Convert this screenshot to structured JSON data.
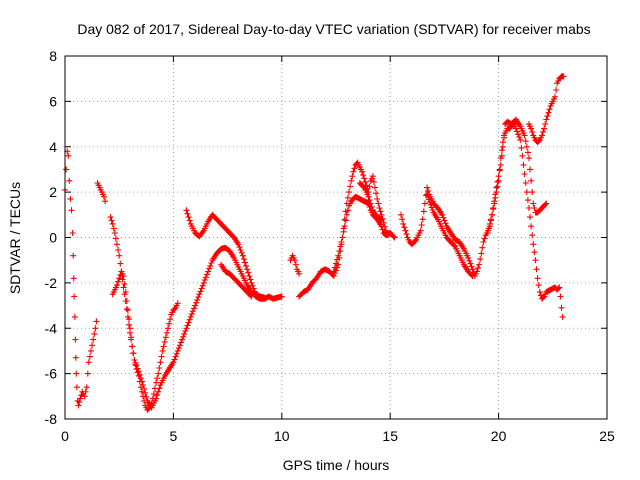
{
  "chart_data": {
    "type": "scatter",
    "title": "Day 082 of 2017, Sidereal Day-to-day VTEC variation (SDTVAR) for receiver mabs",
    "xlabel": "GPS time / hours",
    "ylabel": "SDTVAR / TECUs",
    "xlim": [
      0,
      25
    ],
    "ylim": [
      -8,
      8
    ],
    "xticks": [
      0,
      5,
      10,
      15,
      20,
      25
    ],
    "yticks": [
      -8,
      -6,
      -4,
      -2,
      0,
      2,
      4,
      6,
      8
    ],
    "xtick_labels": [
      "0",
      "5",
      "10",
      "15",
      "20",
      "25"
    ],
    "ytick_labels": [
      "-8",
      "-6",
      "-4",
      "-2",
      "0",
      "2",
      "4",
      "6",
      "8"
    ],
    "grid": true,
    "marker": "plus",
    "color": "#ff0000",
    "segments": [
      [
        [
          0.0,
          2.1
        ],
        [
          0.05,
          3.0
        ],
        [
          0.1,
          3.8
        ],
        [
          0.15,
          3.6
        ],
        [
          0.2,
          2.5
        ],
        [
          0.25,
          1.7
        ],
        [
          0.3,
          1.2
        ],
        [
          0.35,
          0.2
        ],
        [
          0.38,
          -0.8
        ],
        [
          0.4,
          -1.8
        ],
        [
          0.42,
          -2.6
        ],
        [
          0.45,
          -3.5
        ],
        [
          0.48,
          -4.5
        ],
        [
          0.5,
          -5.3
        ],
        [
          0.52,
          -6.0
        ],
        [
          0.55,
          -6.6
        ],
        [
          0.58,
          -7.2
        ],
        [
          0.62,
          -7.4
        ],
        [
          0.7,
          -7.1
        ],
        [
          0.8,
          -6.8
        ],
        [
          0.9,
          -7.0
        ],
        [
          1.0,
          -6.6
        ],
        [
          1.05,
          -6.0
        ],
        [
          1.1,
          -5.5
        ],
        [
          1.2,
          -5.0
        ],
        [
          1.3,
          -4.5
        ],
        [
          1.4,
          -4.0
        ],
        [
          1.45,
          -3.7
        ]
      ],
      [
        [
          1.5,
          2.4
        ],
        [
          1.6,
          2.2
        ],
        [
          1.7,
          2.0
        ],
        [
          1.8,
          1.8
        ],
        [
          1.85,
          1.6
        ]
      ],
      [
        [
          2.1,
          0.9
        ],
        [
          2.2,
          0.6
        ],
        [
          2.3,
          0.2
        ],
        [
          2.4,
          -0.3
        ],
        [
          2.5,
          -0.8
        ],
        [
          2.6,
          -1.5
        ],
        [
          2.7,
          -2.2
        ],
        [
          2.8,
          -2.8
        ],
        [
          2.9,
          -3.5
        ],
        [
          3.0,
          -4.2
        ],
        [
          3.1,
          -4.8
        ],
        [
          3.2,
          -5.4
        ],
        [
          3.3,
          -5.8
        ],
        [
          3.4,
          -6.1
        ],
        [
          3.5,
          -6.6
        ],
        [
          3.6,
          -7.0
        ],
        [
          3.7,
          -7.4
        ],
        [
          3.8,
          -7.6
        ],
        [
          3.9,
          -7.5
        ],
        [
          4.0,
          -7.3
        ],
        [
          4.1,
          -6.9
        ],
        [
          4.2,
          -6.4
        ],
        [
          4.3,
          -6.0
        ],
        [
          4.4,
          -5.5
        ],
        [
          4.5,
          -5.0
        ],
        [
          4.6,
          -4.6
        ],
        [
          4.7,
          -4.2
        ],
        [
          4.8,
          -3.8
        ],
        [
          4.9,
          -3.4
        ],
        [
          5.0,
          -3.2
        ],
        [
          5.1,
          -3.1
        ],
        [
          5.2,
          -2.9
        ]
      ],
      [
        [
          2.2,
          -2.5
        ],
        [
          2.3,
          -2.3
        ],
        [
          2.4,
          -2.1
        ],
        [
          2.5,
          -1.8
        ],
        [
          2.6,
          -1.5
        ],
        [
          2.7,
          -1.7
        ],
        [
          2.8,
          -2.4
        ],
        [
          2.9,
          -3.2
        ],
        [
          3.0,
          -4.0
        ],
        [
          3.1,
          -4.8
        ],
        [
          3.2,
          -5.4
        ],
        [
          3.4,
          -5.9
        ],
        [
          3.6,
          -6.5
        ],
        [
          3.8,
          -7.2
        ],
        [
          4.0,
          -7.5
        ],
        [
          4.2,
          -7.1
        ],
        [
          4.4,
          -6.5
        ],
        [
          4.6,
          -6.1
        ],
        [
          4.8,
          -5.8
        ],
        [
          5.0,
          -5.5
        ],
        [
          5.2,
          -5.0
        ],
        [
          5.4,
          -4.5
        ],
        [
          5.6,
          -4.0
        ],
        [
          5.8,
          -3.5
        ],
        [
          6.0,
          -3.0
        ],
        [
          6.2,
          -2.5
        ],
        [
          6.4,
          -2.0
        ],
        [
          6.6,
          -1.5
        ],
        [
          6.8,
          -1.0
        ],
        [
          7.0,
          -0.7
        ],
        [
          7.2,
          -0.5
        ],
        [
          7.4,
          -0.45
        ],
        [
          7.6,
          -0.6
        ],
        [
          7.8,
          -0.9
        ],
        [
          8.0,
          -1.3
        ],
        [
          8.2,
          -1.7
        ],
        [
          8.4,
          -2.1
        ],
        [
          8.6,
          -2.4
        ],
        [
          8.8,
          -2.6
        ],
        [
          9.0,
          -2.7
        ],
        [
          9.2,
          -2.7
        ],
        [
          9.4,
          -2.6
        ],
        [
          9.6,
          -2.7
        ],
        [
          9.8,
          -2.65
        ],
        [
          10.0,
          -2.6
        ]
      ],
      [
        [
          5.6,
          1.2
        ],
        [
          5.8,
          0.6
        ],
        [
          6.0,
          0.2
        ],
        [
          6.2,
          0.05
        ],
        [
          6.4,
          0.3
        ],
        [
          6.6,
          0.7
        ],
        [
          6.8,
          1.0
        ],
        [
          7.0,
          0.8
        ],
        [
          7.2,
          0.6
        ],
        [
          7.4,
          0.4
        ],
        [
          7.6,
          0.2
        ],
        [
          7.8,
          0.0
        ],
        [
          8.0,
          -0.3
        ],
        [
          8.2,
          -0.8
        ],
        [
          8.4,
          -1.4
        ],
        [
          8.6,
          -2.0
        ],
        [
          8.8,
          -2.5
        ],
        [
          9.0,
          -2.6
        ],
        [
          9.2,
          -2.65
        ]
      ],
      [
        [
          7.2,
          -1.2
        ],
        [
          7.4,
          -1.5
        ],
        [
          7.6,
          -1.6
        ],
        [
          7.8,
          -1.8
        ],
        [
          8.0,
          -2.0
        ],
        [
          8.2,
          -2.2
        ],
        [
          8.4,
          -2.4
        ],
        [
          8.6,
          -2.6
        ]
      ],
      [
        [
          10.4,
          -1.0
        ],
        [
          10.5,
          -0.8
        ],
        [
          10.6,
          -1.0
        ],
        [
          10.7,
          -1.4
        ],
        [
          10.8,
          -1.6
        ]
      ],
      [
        [
          10.8,
          -2.6
        ],
        [
          11.0,
          -2.4
        ],
        [
          11.2,
          -2.3
        ],
        [
          11.4,
          -2.0
        ],
        [
          11.6,
          -1.8
        ],
        [
          11.8,
          -1.5
        ],
        [
          12.0,
          -1.4
        ],
        [
          12.2,
          -1.5
        ],
        [
          12.4,
          -1.7
        ],
        [
          12.6,
          -1.2
        ],
        [
          12.7,
          -0.6
        ],
        [
          12.8,
          0.0
        ],
        [
          12.9,
          0.5
        ],
        [
          13.0,
          1.0
        ],
        [
          13.1,
          1.4
        ],
        [
          13.2,
          1.6
        ],
        [
          13.4,
          1.8
        ],
        [
          13.6,
          1.7
        ],
        [
          13.8,
          1.6
        ],
        [
          14.0,
          1.5
        ],
        [
          14.1,
          1.2
        ],
        [
          14.2,
          1.0
        ],
        [
          14.4,
          0.8
        ],
        [
          14.6,
          0.5
        ],
        [
          14.7,
          0.2
        ],
        [
          14.8,
          0.1
        ],
        [
          15.0,
          0.2
        ],
        [
          15.2,
          0.0
        ]
      ],
      [
        [
          12.4,
          -1.5
        ],
        [
          12.6,
          -0.8
        ],
        [
          12.8,
          0.0
        ],
        [
          12.9,
          0.8
        ],
        [
          13.0,
          1.5
        ],
        [
          13.1,
          2.0
        ],
        [
          13.2,
          2.5
        ],
        [
          13.3,
          2.9
        ],
        [
          13.4,
          3.2
        ],
        [
          13.5,
          3.3
        ],
        [
          13.6,
          3.1
        ],
        [
          13.7,
          2.9
        ],
        [
          13.8,
          2.6
        ],
        [
          13.9,
          2.3
        ],
        [
          14.0,
          2.0
        ],
        [
          14.1,
          2.5
        ],
        [
          14.2,
          2.7
        ],
        [
          14.3,
          2.2
        ],
        [
          14.4,
          1.7
        ],
        [
          14.5,
          1.3
        ],
        [
          14.6,
          1.0
        ],
        [
          14.8,
          0.3
        ],
        [
          14.9,
          0.1
        ]
      ],
      [
        [
          13.6,
          2.4
        ],
        [
          13.8,
          2.2
        ],
        [
          14.0,
          1.8
        ],
        [
          14.2,
          1.2
        ],
        [
          14.4,
          0.9
        ],
        [
          14.6,
          0.8
        ]
      ],
      [
        [
          15.5,
          1.0
        ],
        [
          15.6,
          0.6
        ],
        [
          15.7,
          0.3
        ],
        [
          15.8,
          0.0
        ],
        [
          15.9,
          -0.2
        ],
        [
          16.0,
          -0.3
        ],
        [
          16.2,
          -0.1
        ],
        [
          16.4,
          0.3
        ],
        [
          16.5,
          0.8
        ],
        [
          16.6,
          1.5
        ],
        [
          16.7,
          2.2
        ],
        [
          16.8,
          1.9
        ],
        [
          16.9,
          1.7
        ],
        [
          17.0,
          1.5
        ],
        [
          17.2,
          1.3
        ],
        [
          17.4,
          1.0
        ],
        [
          17.6,
          0.5
        ],
        [
          17.8,
          0.2
        ],
        [
          18.0,
          -0.1
        ],
        [
          18.2,
          -0.2
        ],
        [
          18.4,
          -0.5
        ],
        [
          18.6,
          -0.9
        ],
        [
          18.8,
          -1.4
        ],
        [
          18.9,
          -1.7
        ],
        [
          19.0,
          -1.5
        ],
        [
          19.1,
          -1.2
        ],
        [
          19.2,
          -0.7
        ],
        [
          19.3,
          -0.2
        ],
        [
          19.4,
          0.1
        ],
        [
          19.6,
          0.5
        ],
        [
          19.8,
          1.5
        ],
        [
          20.0,
          2.5
        ],
        [
          20.1,
          3.5
        ],
        [
          20.2,
          4.2
        ],
        [
          20.3,
          4.6
        ],
        [
          20.4,
          4.8
        ],
        [
          20.5,
          4.8
        ],
        [
          20.6,
          4.9
        ],
        [
          20.7,
          5.0
        ],
        [
          20.8,
          4.8
        ],
        [
          21.0,
          4.3
        ],
        [
          21.1,
          3.6
        ],
        [
          21.2,
          2.8
        ],
        [
          21.3,
          2.0
        ],
        [
          21.4,
          1.3
        ],
        [
          21.5,
          0.5
        ],
        [
          21.6,
          -0.3
        ],
        [
          21.7,
          -1.0
        ],
        [
          21.8,
          -1.8
        ],
        [
          21.9,
          -2.4
        ],
        [
          22.0,
          -2.7
        ],
        [
          22.1,
          -2.6
        ],
        [
          22.2,
          -2.4
        ],
        [
          22.4,
          -2.3
        ],
        [
          22.6,
          -2.2
        ],
        [
          22.7,
          -2.3
        ],
        [
          22.8,
          -2.2
        ],
        [
          22.85,
          -2.6
        ],
        [
          22.9,
          -3.1
        ],
        [
          22.95,
          -3.5
        ]
      ],
      [
        [
          16.7,
          1.9
        ],
        [
          17.0,
          1.1
        ],
        [
          17.2,
          0.8
        ],
        [
          17.4,
          0.4
        ],
        [
          17.6,
          0.0
        ],
        [
          17.8,
          -0.2
        ],
        [
          18.0,
          -0.4
        ],
        [
          18.2,
          -0.8
        ],
        [
          18.4,
          -1.2
        ],
        [
          18.6,
          -1.5
        ],
        [
          18.8,
          -1.7
        ]
      ],
      [
        [
          19.5,
          0.2
        ],
        [
          19.7,
          1.0
        ],
        [
          19.9,
          2.2
        ],
        [
          20.1,
          3.2
        ],
        [
          20.2,
          4.0
        ],
        [
          20.3,
          5.0
        ],
        [
          20.4,
          5.1
        ],
        [
          20.6,
          5.0
        ],
        [
          20.8,
          5.2
        ],
        [
          21.0,
          4.9
        ],
        [
          21.2,
          4.5
        ],
        [
          21.4,
          3.5
        ],
        [
          21.5,
          2.5
        ],
        [
          21.6,
          1.5
        ],
        [
          21.7,
          1.1
        ],
        [
          21.8,
          1.1
        ],
        [
          21.9,
          1.2
        ],
        [
          22.0,
          1.3
        ],
        [
          22.1,
          1.4
        ],
        [
          22.2,
          1.5
        ]
      ],
      [
        [
          21.4,
          5.0
        ],
        [
          21.5,
          4.8
        ],
        [
          21.6,
          4.5
        ],
        [
          21.7,
          4.3
        ],
        [
          21.8,
          4.2
        ],
        [
          21.9,
          4.3
        ],
        [
          22.0,
          4.5
        ],
        [
          22.1,
          4.8
        ],
        [
          22.2,
          5.2
        ],
        [
          22.3,
          5.5
        ],
        [
          22.4,
          5.8
        ],
        [
          22.5,
          6.0
        ],
        [
          22.6,
          6.2
        ],
        [
          22.7,
          6.8
        ],
        [
          22.8,
          7.0
        ],
        [
          22.9,
          7.1
        ],
        [
          23.0,
          7.1
        ]
      ]
    ]
  }
}
